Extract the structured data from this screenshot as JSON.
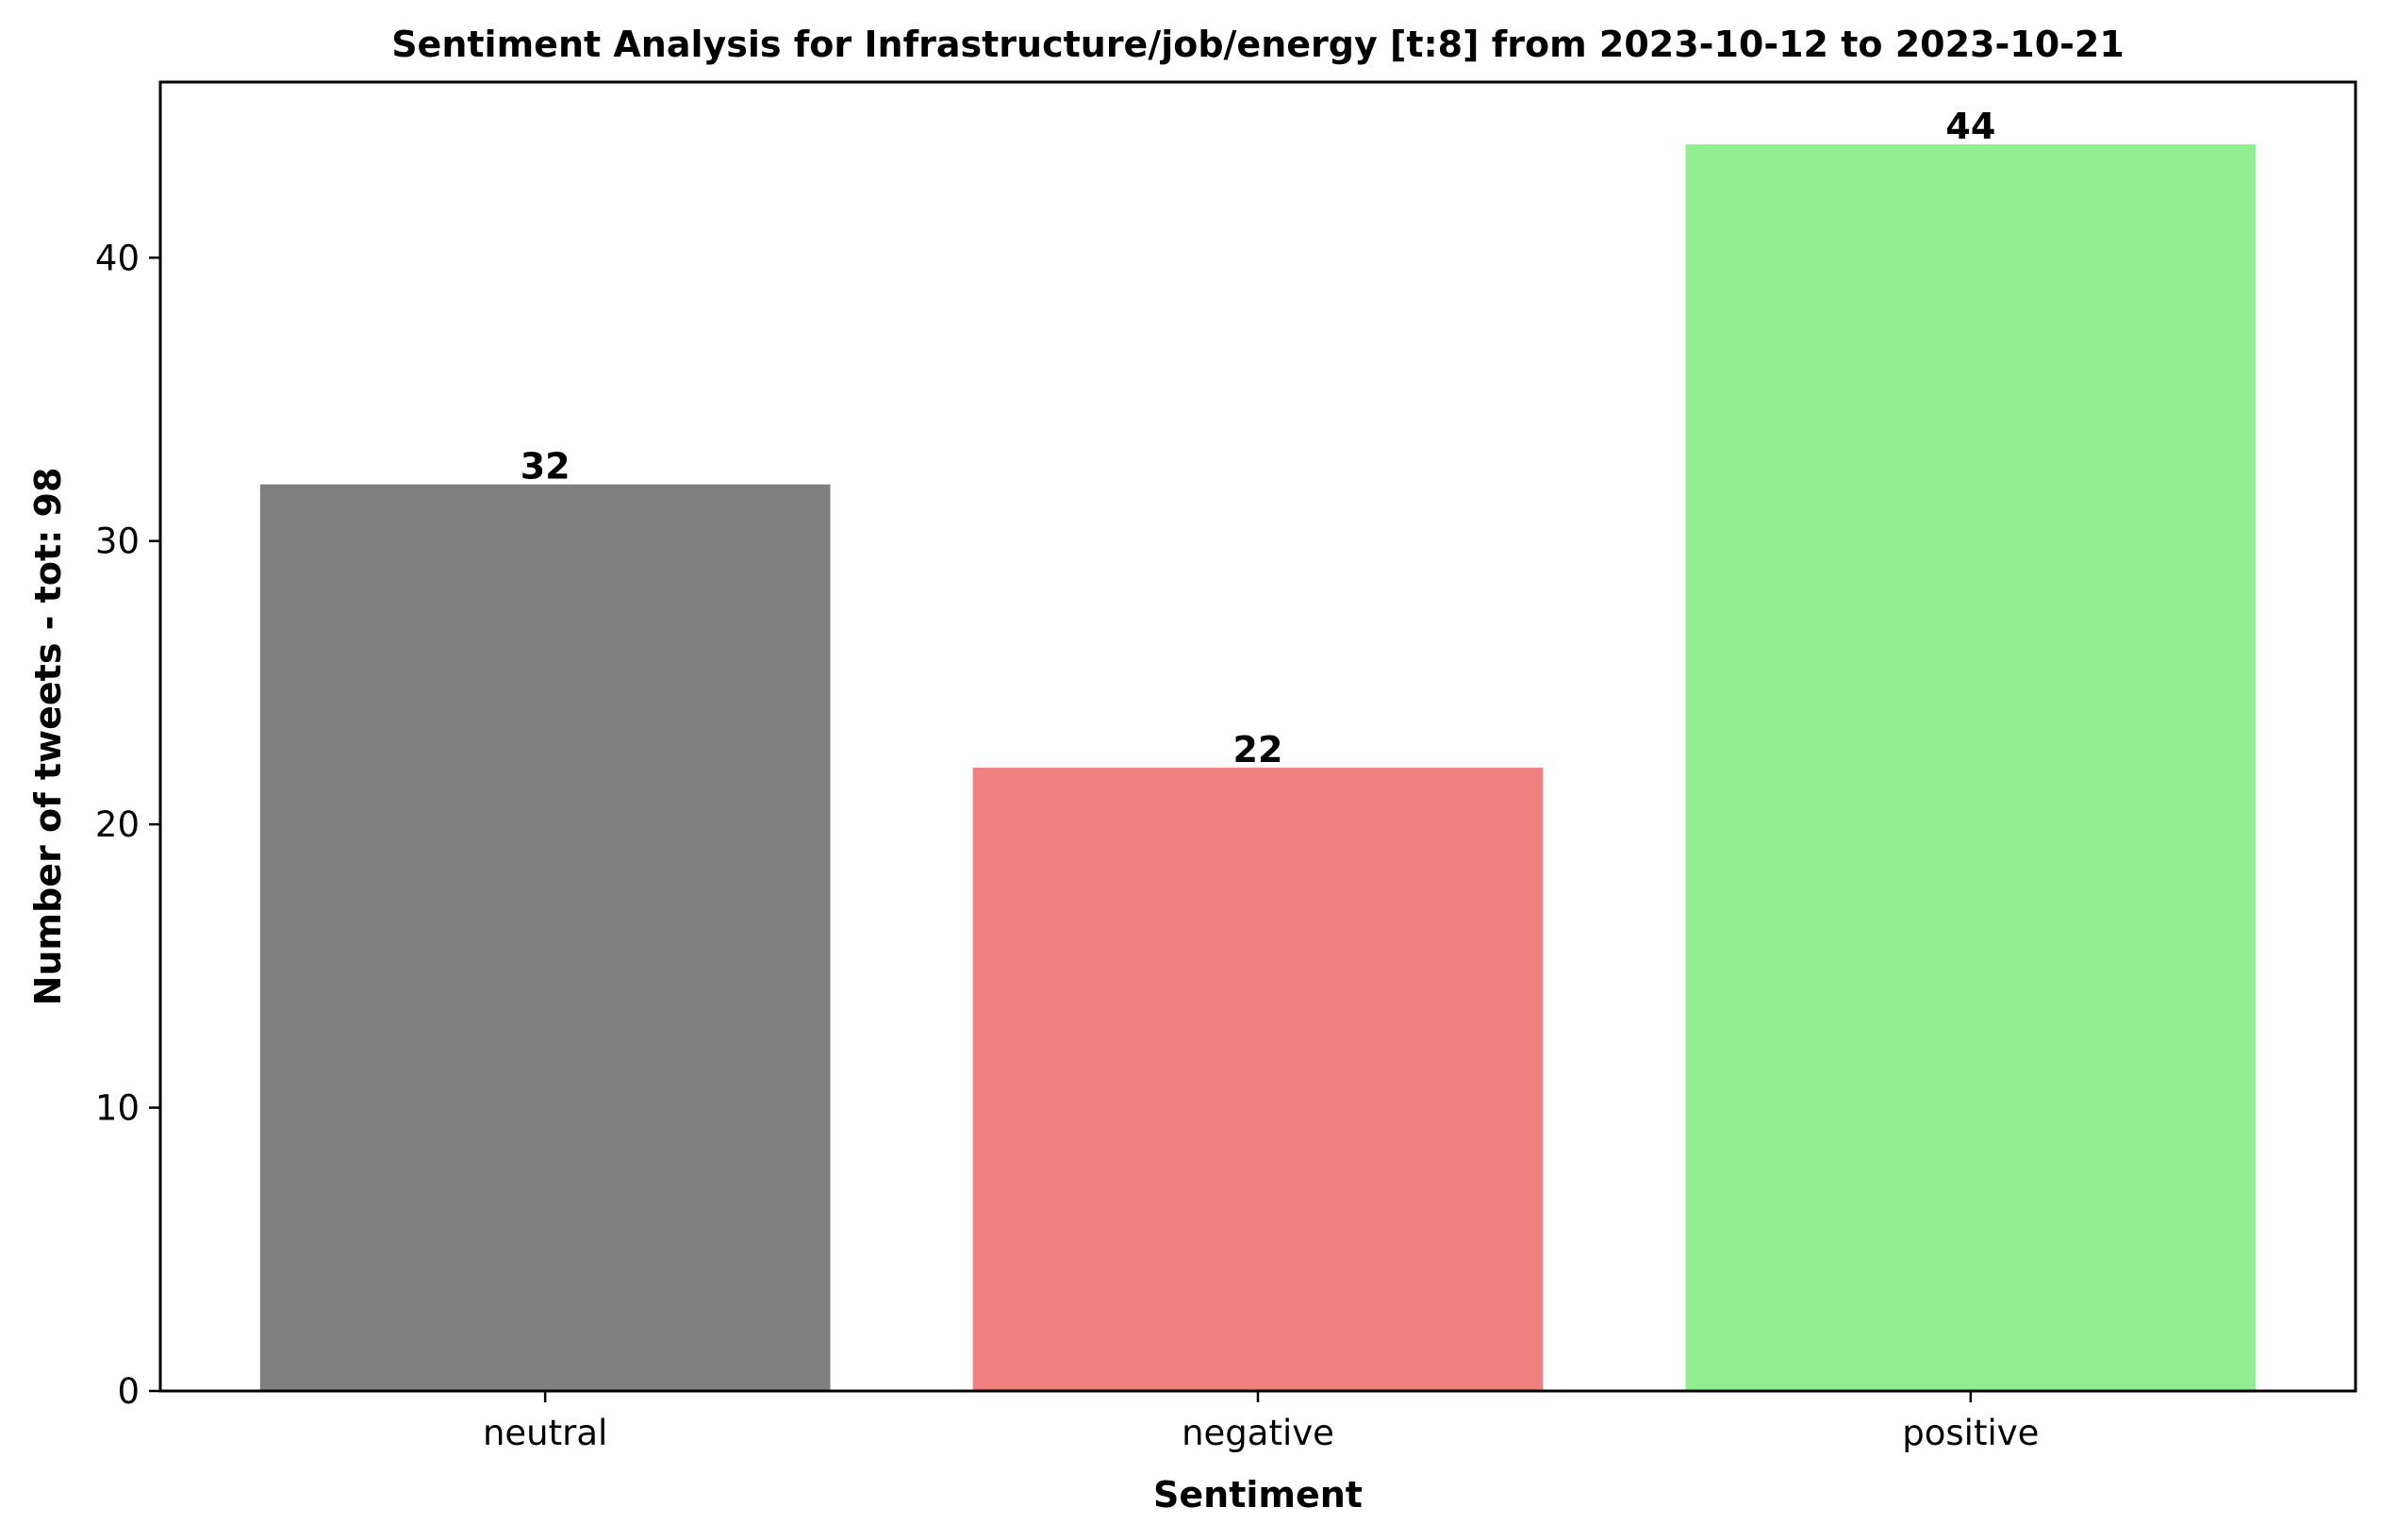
{
  "chart_data": {
    "type": "bar",
    "title": "Sentiment Analysis for Infrastructure/job/energy [t:8] from 2023-10-12 to 2023-10-21",
    "xlabel": "Sentiment",
    "ylabel": "Number of tweets - tot: 98",
    "categories": [
      "neutral",
      "negative",
      "positive"
    ],
    "values": [
      32,
      22,
      44
    ],
    "colors": [
      "#808080",
      "#f08080",
      "#90ee90"
    ],
    "ylim": [
      0,
      46.2
    ],
    "yticks": [
      0,
      10,
      20,
      30,
      40
    ],
    "grid": false,
    "legend": "none"
  }
}
